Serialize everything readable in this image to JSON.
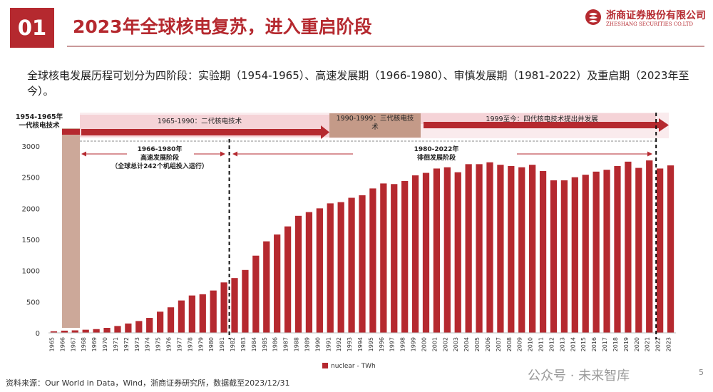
{
  "header": {
    "section_number": "01",
    "title": "2023年全球核电复苏，进入重启阶段"
  },
  "logo": {
    "name_cn": "浙商证券股份有限公司",
    "name_en": "ZHESHANG SECURITIES CO.LTD"
  },
  "intro": "全球核电发展历程可划分为四阶段：实验期（1954-1965）、高速发展期（1966-1980）、审慎发展期（1981-2022）及重启期（2023年至今）。",
  "source": "资料来源：Our World in Data，Wind，浙商证券研究所，数据截至2023/12/31",
  "watermark": "公众号 · 未来智库",
  "page_number": "5",
  "colors": {
    "brand": "#b5292f",
    "bar": "#b5292f",
    "period_one": "#cca899",
    "period_three": "#c49a88",
    "band_light": "#f5d3d7"
  },
  "chart_data": {
    "type": "bar",
    "categories": [
      "1965",
      "1966",
      "1967",
      "1968",
      "1969",
      "1970",
      "1971",
      "1972",
      "1973",
      "1974",
      "1975",
      "1976",
      "1977",
      "1978",
      "1979",
      "1980",
      "1981",
      "1982",
      "1983",
      "1984",
      "1985",
      "1986",
      "1987",
      "1988",
      "1989",
      "1990",
      "1991",
      "1992",
      "1993",
      "1994",
      "1995",
      "1996",
      "1997",
      "1998",
      "1999",
      "2000",
      "2001",
      "2002",
      "2003",
      "2004",
      "2005",
      "2006",
      "2007",
      "2008",
      "2009",
      "2010",
      "2011",
      "2012",
      "2013",
      "2014",
      "2015",
      "2016",
      "2017",
      "2018",
      "2019",
      "2020",
      "2021",
      "2022",
      "2023"
    ],
    "series": [
      {
        "name": "nuclear - TWh",
        "values": [
          25,
          35,
          40,
          50,
          60,
          80,
          110,
          150,
          190,
          240,
          340,
          410,
          520,
          600,
          620,
          680,
          810,
          880,
          1010,
          1240,
          1470,
          1580,
          1710,
          1880,
          1940,
          2000,
          2080,
          2100,
          2170,
          2210,
          2320,
          2400,
          2390,
          2440,
          2530,
          2570,
          2640,
          2660,
          2580,
          2710,
          2710,
          2740,
          2700,
          2680,
          2660,
          2700,
          2600,
          2450,
          2450,
          2500,
          2540,
          2590,
          2620,
          2680,
          2750,
          2650,
          2770,
          2640,
          2690
        ]
      }
    ],
    "ylim": [
      0,
      3000
    ],
    "yticks": [
      0,
      500,
      1000,
      1500,
      2000,
      2500,
      3000
    ],
    "legend": {
      "position": "bottom-center",
      "label": "nuclear - TWh"
    },
    "periods": [
      {
        "label": "1954-1965年\n一代核电技术",
        "range": [
          "1965",
          "1967"
        ]
      },
      {
        "label": "1965-1990：二代核电技术",
        "range": [
          "1968",
          "1990"
        ]
      },
      {
        "label": "1990-1999：三代核电技\n术",
        "range": [
          "1991",
          "1999"
        ]
      },
      {
        "label": "1999至今：四代核电技术提出并发展",
        "range": [
          "2000",
          "2023"
        ]
      }
    ],
    "phases": [
      {
        "label": "1966-1980年\n高速发展阶段\n（全球总计242个机组投入运行）",
        "range": [
          "1968",
          "1981"
        ]
      },
      {
        "label": "1980-2022年\n徘徊发展阶段",
        "range": [
          "1982",
          "2021"
        ]
      }
    ],
    "markers": [
      "1981",
      "2021"
    ]
  }
}
